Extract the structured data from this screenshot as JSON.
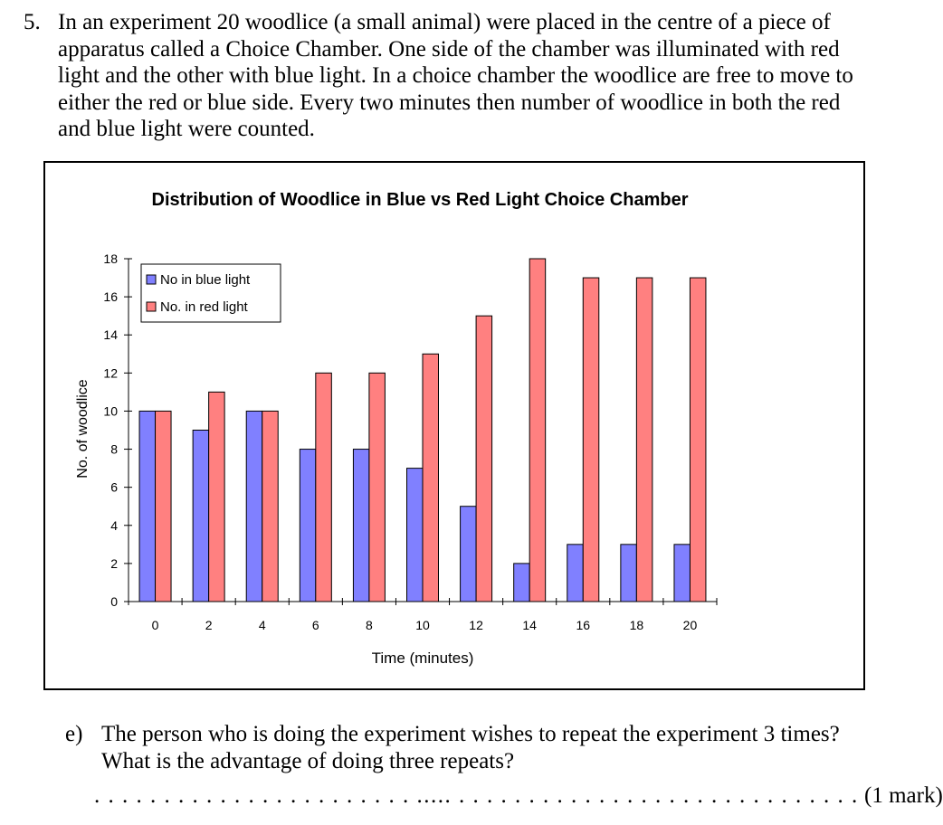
{
  "question": {
    "number": "5.",
    "text": "In an experiment 20 woodlice (a small animal) were placed in the centre of a piece of apparatus called a Choice Chamber.  One side of the chamber was illuminated with red light and the other with blue light.  In a choice chamber the woodlice are free to move to either the red or blue side.  Every two minutes then number of woodlice in both the red and blue light were counted."
  },
  "chart_data": {
    "type": "bar",
    "title": "Distribution of Woodlice in Blue vs Red Light Choice Chamber",
    "xlabel": "Time (minutes)",
    "ylabel": "No. of woodlice",
    "categories": [
      "0",
      "2",
      "4",
      "6",
      "8",
      "10",
      "12",
      "14",
      "16",
      "18",
      "20"
    ],
    "series": [
      {
        "name": "No in blue light",
        "color": "#8080ff",
        "values": [
          10,
          9,
          10,
          8,
          8,
          7,
          5,
          2,
          3,
          3,
          3
        ]
      },
      {
        "name": "No. in red light",
        "color": "#ff8080",
        "values": [
          10,
          11,
          10,
          12,
          12,
          13,
          15,
          18,
          17,
          17,
          17
        ]
      }
    ],
    "yticks": [
      "0",
      "2",
      "4",
      "6",
      "8",
      "10",
      "12",
      "14",
      "16",
      "18"
    ],
    "ylim": [
      0,
      18
    ],
    "legend": "top-left",
    "grid": false
  },
  "part_e": {
    "label": "e)",
    "text": "The person who is doing the experiment wishes to repeat the experiment 3 times? What is the advantage of doing three repeats?",
    "dots": ". . . .  . . .  . . . . . . . . . .  . . . . . . ..... . . . . . . . . . . . . . . . . . . . . . . . . . . . . .",
    "marks": "(1 mark)"
  }
}
